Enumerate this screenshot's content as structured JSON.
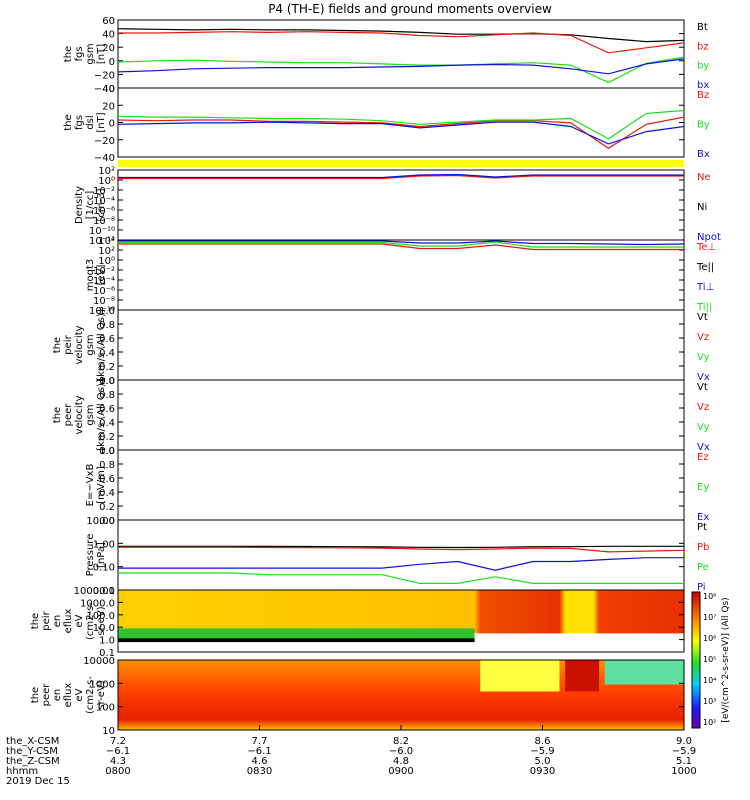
{
  "title": "P4 (TH-E) fields and ground moments overview",
  "colors": {
    "black": "#000000",
    "red": "#e8190c",
    "green": "#1fdc1f",
    "blue": "#1010d8",
    "yellow": "#ffff00"
  },
  "panels": [
    {
      "ylabel": [
        "the",
        "fgs",
        "gsm",
        "[nT]"
      ],
      "ticks": [
        "60",
        "40",
        "20",
        "0",
        "−20",
        "−40"
      ],
      "legend": [
        {
          "text": "Bt",
          "color": "black"
        },
        {
          "text": "bz",
          "color": "red"
        },
        {
          "text": "by",
          "color": "green"
        },
        {
          "text": "bx",
          "color": "blue"
        }
      ]
    },
    {
      "ylabel": [
        "the",
        "fgs",
        "dsl",
        "[nT]"
      ],
      "ticks": [
        "40",
        "20",
        "0",
        "−20",
        "−40"
      ],
      "legend": [
        {
          "text": "Bz",
          "color": "red"
        },
        {
          "text": "By",
          "color": "green"
        },
        {
          "text": "Bx",
          "color": "blue"
        }
      ]
    },
    {
      "ylabel": [
        "Density",
        "[1/cc]",
        "[cm-3]"
      ],
      "ticks": [
        "10²",
        "10⁰",
        "10⁻²",
        "10⁻⁴",
        "10⁻⁶",
        "10⁻⁸",
        "10⁻¹⁰",
        "10⁻¹²"
      ],
      "legend": [
        {
          "text": "Ne",
          "color": "red"
        },
        {
          "text": "Ni",
          "color": "black"
        },
        {
          "text": "Npot",
          "color": "blue"
        }
      ]
    },
    {
      "ylabel": [
        "moqt3",
        "[eV]"
      ],
      "ticks": [
        "10⁴",
        "10²",
        "10⁰",
        "10⁻²",
        "10⁻⁴",
        "10⁻⁶",
        "10⁻⁸",
        "10⁻¹⁰"
      ],
      "legend": [
        {
          "text": "Te⊥",
          "color": "red"
        },
        {
          "text": "Te||",
          "color": "black"
        },
        {
          "text": "Ti⊥",
          "color": "blue"
        },
        {
          "text": "Ti||",
          "color": "green"
        }
      ]
    },
    {
      "ylabel": [
        "the",
        "peir",
        "velocity",
        "gsm",
        "[km/s (All Qs)]"
      ],
      "ticks": [
        "1.0",
        "0.8",
        "0.6",
        "0.4",
        "0.2",
        "0.0"
      ],
      "legend": [
        {
          "text": "Vt",
          "color": "black"
        },
        {
          "text": "Vz",
          "color": "red"
        },
        {
          "text": "Vy",
          "color": "green"
        },
        {
          "text": "Vx",
          "color": "blue"
        }
      ]
    },
    {
      "ylabel": [
        "the",
        "peer",
        "velocity",
        "gsm",
        "[km/s (All Qs)]"
      ],
      "ticks": [
        "1.0",
        "0.8",
        "0.6",
        "0.4",
        "0.2",
        "0.0"
      ],
      "legend": [
        {
          "text": "Vt",
          "color": "black"
        },
        {
          "text": "Vz",
          "color": "red"
        },
        {
          "text": "Vy",
          "color": "green"
        },
        {
          "text": "Vx",
          "color": "blue"
        }
      ]
    },
    {
      "ylabel": [
        "E=−VxB",
        "[mV/m]"
      ],
      "ticks": [
        "1.0",
        "0.8",
        "0.6",
        "0.4",
        "0.2",
        "0.0"
      ],
      "legend": [
        {
          "text": "Ez",
          "color": "red"
        },
        {
          "text": "Ey",
          "color": "green"
        },
        {
          "text": "Ex",
          "color": "blue"
        }
      ]
    },
    {
      "ylabel": [
        "Pressure",
        "[nPa]"
      ],
      "ticks": [
        "10.00",
        "1.00",
        "0.10",
        "0.01"
      ],
      "legend": [
        {
          "text": "Pt",
          "color": "black"
        },
        {
          "text": "Pb",
          "color": "red"
        },
        {
          "text": "Pe",
          "color": "green"
        },
        {
          "text": "Pi",
          "color": "blue"
        }
      ]
    },
    {
      "ylabel": [
        "the",
        "peir",
        "en",
        "eflux",
        "eV",
        "(cm2-s-",
        "sr-eV)"
      ],
      "ticks": [
        "10000.0",
        "1000.0",
        "100.0",
        "10.0",
        "1.0",
        "0.1"
      ]
    },
    {
      "ylabel": [
        "the",
        "peer",
        "en",
        "eflux",
        "eV",
        "(cm2-s-",
        "sr-eV)"
      ],
      "ticks": [
        "10000",
        "1000",
        "100",
        "10"
      ]
    }
  ],
  "colorbar": {
    "ticks": [
      "10⁸",
      "10⁷",
      "10⁶",
      "10⁵",
      "10⁴",
      "10³",
      "10²"
    ],
    "label": "[eV/(cm^2-s-sr-eV)] (All Qs)"
  },
  "xaxis": {
    "labels": [
      "the_X-CSM",
      "the_Y-CSM",
      "the_Z-CSM",
      "hhmm",
      "2019 Dec 15"
    ],
    "columns": [
      {
        "x": "7.2",
        "y": "−6.1",
        "z": "4.3",
        "t": "0800"
      },
      {
        "x": "7.7",
        "y": "−6.1",
        "z": "4.6",
        "t": "0830"
      },
      {
        "x": "8.2",
        "y": "−6.0",
        "z": "4.8",
        "t": "0900"
      },
      {
        "x": "8.6",
        "y": "−5.9",
        "z": "5.0",
        "t": "0930"
      },
      {
        "x": "9.0",
        "y": "−5.9",
        "z": "5.1",
        "t": "1000"
      }
    ]
  },
  "chart_data": {
    "type": "line",
    "title": "P4 (TH-E) fields and ground moments overview",
    "x_unit": "hhmm",
    "x": [
      "0800",
      "0810",
      "0820",
      "0830",
      "0840",
      "0850",
      "0900",
      "0910",
      "0920",
      "0930",
      "0935",
      "0940",
      "0945",
      "0950",
      "0955",
      "1000"
    ],
    "panels": [
      {
        "name": "fgs gsm",
        "ylim": [
          -45,
          65
        ],
        "series": [
          {
            "name": "Bt",
            "values": [
              51,
              50,
              49,
              50,
              49,
              49,
              48,
              47,
              45,
              42,
              42,
              43,
              41,
              35,
              30,
              32
            ]
          },
          {
            "name": "bz",
            "values": [
              44,
              44,
              45,
              46,
              45,
              46,
              45,
              44,
              40,
              38,
              41,
              44,
              40,
              12,
              20,
              28
            ]
          },
          {
            "name": "by",
            "values": [
              -3,
              -1,
              0,
              -2,
              -3,
              -4,
              -4,
              -6,
              -8,
              -8,
              -6,
              -4,
              -8,
              -36,
              -5,
              5
            ]
          },
          {
            "name": "bx",
            "values": [
              -19,
              -17,
              -14,
              -13,
              -12,
              -12,
              -12,
              -11,
              -10,
              -8,
              -7,
              -8,
              -14,
              -22,
              -6,
              2
            ]
          }
        ]
      },
      {
        "name": "fgs dsl",
        "ylim": [
          -50,
          45
        ],
        "series": [
          {
            "name": "Bz",
            "values": [
              1,
              0,
              1,
              1,
              -1,
              -1,
              -2,
              -3,
              -8,
              -4,
              0,
              0,
              -3,
              -38,
              -5,
              5
            ]
          },
          {
            "name": "By",
            "values": [
              6,
              5,
              5,
              4,
              3,
              3,
              2,
              0,
              -5,
              -2,
              1,
              1,
              3,
              -25,
              10,
              14
            ]
          },
          {
            "name": "Bx",
            "values": [
              -5,
              -4,
              -3,
              -3,
              -2,
              -3,
              -4,
              -4,
              -10,
              -6,
              -2,
              -2,
              -8,
              -32,
              -15,
              -8
            ]
          }
        ]
      },
      {
        "name": "Density",
        "log": true,
        "ylim_exp": [
          -12,
          2
        ],
        "series": [
          {
            "name": "Ne",
            "values_exp": [
              0.3,
              0.3,
              0.3,
              0.3,
              0.3,
              0.3,
              0.3,
              0.3,
              0.8,
              0.9,
              0.4,
              0.8,
              0.8,
              0.8,
              0.8,
              0.8
            ]
          },
          {
            "name": "Npot",
            "values_exp": [
              0.5,
              0.5,
              0.5,
              0.5,
              0.5,
              0.5,
              0.5,
              0.5,
              1.0,
              1.1,
              0.6,
              1.0,
              1.0,
              1.0,
              1.0,
              1.0
            ]
          }
        ]
      },
      {
        "name": "moqt3",
        "log": true,
        "ylim_exp": [
          -10,
          4
        ],
        "series": [
          {
            "name": "Te⊥",
            "values_exp": [
              3.2,
              3.2,
              3.2,
              3.2,
              3.2,
              3.2,
              3.2,
              3.2,
              2.3,
              2.3,
              3.0,
              2.1,
              2.1,
              2.1,
              2.1,
              2.1
            ]
          },
          {
            "name": "Ti⊥",
            "values_exp": [
              3.8,
              3.8,
              3.8,
              3.8,
              3.8,
              3.8,
              3.8,
              3.8,
              3.4,
              3.4,
              3.8,
              3.3,
              3.3,
              3.2,
              3.1,
              3.2
            ]
          },
          {
            "name": "Ti||",
            "values_exp": [
              3.5,
              3.5,
              3.5,
              3.5,
              3.5,
              3.5,
              3.5,
              3.5,
              2.8,
              2.8,
              3.6,
              2.6,
              2.6,
              2.6,
              2.6,
              2.6
            ]
          }
        ]
      },
      {
        "name": "Pressure",
        "log": true,
        "ylim_exp": [
          -2,
          1.2
        ],
        "series": [
          {
            "name": "Pt",
            "values": [
              1.0,
              1.0,
              1.0,
              1.0,
              0.98,
              0.97,
              0.95,
              0.93,
              0.9,
              0.88,
              0.9,
              0.95,
              0.95,
              1.0,
              1.0,
              1.0
            ]
          },
          {
            "name": "Pb",
            "values": [
              0.9,
              0.9,
              0.9,
              0.9,
              0.88,
              0.87,
              0.85,
              0.82,
              0.75,
              0.7,
              0.75,
              0.82,
              0.8,
              0.55,
              0.6,
              0.65
            ]
          },
          {
            "name": "Pe",
            "values": [
              0.06,
              0.06,
              0.06,
              0.06,
              0.05,
              0.05,
              0.05,
              0.05,
              0.02,
              0.02,
              0.04,
              0.02,
              0.02,
              0.02,
              0.02,
              0.02
            ]
          },
          {
            "name": "Pi",
            "values": [
              0.1,
              0.1,
              0.1,
              0.1,
              0.1,
              0.1,
              0.1,
              0.1,
              0.15,
              0.2,
              0.08,
              0.2,
              0.2,
              0.25,
              0.3,
              0.3
            ]
          }
        ]
      }
    ]
  }
}
